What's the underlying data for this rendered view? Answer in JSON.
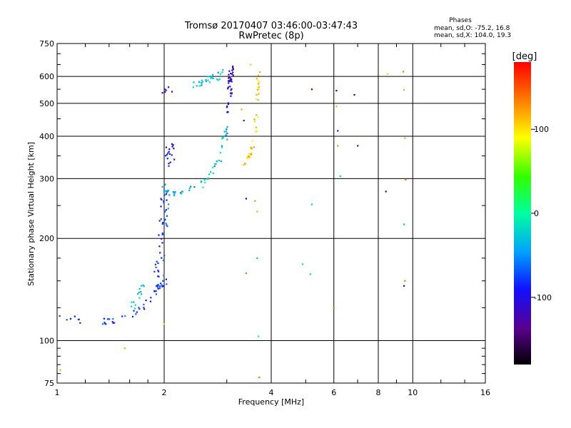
{
  "chart_data": {
    "type": "scatter",
    "title": "Tromsø 20170407 03:46:00-03:47:43",
    "subtitle": "RwPretec (8p)",
    "xlabel": "Frequency [MHz]",
    "ylabel": "Stationary phase Virtual Height [km]",
    "x_scale": "log",
    "y_scale": "log",
    "xlim": [
      1,
      16
    ],
    "ylim": [
      75,
      750
    ],
    "x_ticks": [
      1,
      2,
      4,
      6,
      8,
      10,
      16
    ],
    "x_tick_labels": [
      "1",
      "2",
      "4",
      "6",
      "8",
      "10",
      "16"
    ],
    "y_ticks": [
      75,
      100,
      200,
      300,
      400,
      500,
      600,
      750
    ],
    "y_tick_labels": [
      "75",
      "100",
      "200",
      "300",
      "400",
      "500",
      "600",
      "750"
    ],
    "grid": true,
    "info": {
      "title": "Phases",
      "line1": "mean, sd,O: -75.2, 16.8",
      "line2": "mean, sd,X: 104.0, 19.3"
    },
    "colorbar": {
      "label": "[deg]",
      "min": -180,
      "max": 180,
      "ticks": [
        100,
        0,
        -100
      ],
      "tick_labels": [
        "100",
        "0",
        "-100"
      ]
    },
    "traces": [
      {
        "x": [
          1.0,
          1.1,
          1.2,
          1.35,
          1.5,
          1.6,
          1.7,
          1.78,
          1.85,
          1.9,
          1.95,
          2.0
        ],
        "y": [
          118,
          116,
          113,
          114,
          115,
          118,
          122,
          128,
          134,
          140,
          145,
          150
        ],
        "phase": -75,
        "spread": 0.02,
        "n": 55
      },
      {
        "x": [
          1.62,
          1.66,
          1.7,
          1.75,
          1.8
        ],
        "y": [
          125,
          131,
          138,
          144,
          150
        ],
        "phase": -30,
        "spread": 0.02,
        "n": 14
      },
      {
        "x": [
          1.9,
          1.92,
          1.95,
          1.97,
          1.99,
          2.0
        ],
        "y": [
          150,
          170,
          195,
          220,
          250,
          280
        ],
        "phase": -85,
        "spread": 0.02,
        "n": 32
      },
      {
        "x": [
          2.0,
          2.02,
          2.05
        ],
        "y": [
          150,
          200,
          250
        ],
        "phase": -60,
        "spread": 0.02,
        "n": 12
      },
      {
        "x": [
          2.0,
          2.05,
          2.15,
          2.3,
          2.5,
          2.7,
          2.85,
          2.95,
          3.0
        ],
        "y": [
          285,
          272,
          270,
          275,
          288,
          310,
          340,
          380,
          430
        ],
        "phase": -45,
        "spread": 0.015,
        "n": 45
      },
      {
        "x": [
          2.5,
          2.65,
          2.8,
          2.9,
          2.95
        ],
        "y": [
          280,
          300,
          330,
          360,
          400
        ],
        "phase": -15,
        "spread": 0.015,
        "n": 15
      },
      {
        "x": [
          3.0,
          3.02,
          3.05,
          3.08,
          3.1,
          3.08,
          3.05
        ],
        "y": [
          430,
          480,
          530,
          580,
          640,
          600,
          560
        ],
        "phase": -110,
        "spread": 0.015,
        "n": 40
      },
      {
        "x": [
          2.4,
          2.55,
          2.7,
          2.85,
          2.95
        ],
        "y": [
          560,
          575,
          590,
          610,
          630
        ],
        "phase": -30,
        "spread": 0.025,
        "n": 30
      },
      {
        "x": [
          2.0,
          2.05,
          2.1
        ],
        "y": [
          540,
          545,
          550
        ],
        "phase": -110,
        "spread": 0.02,
        "n": 6
      },
      {
        "x": [
          2.02,
          2.05,
          2.08,
          2.1
        ],
        "y": [
          320,
          350,
          380,
          340
        ],
        "phase": -100,
        "spread": 0.02,
        "n": 18
      },
      {
        "x": [
          3.3,
          3.45,
          3.55,
          3.62,
          3.65,
          3.68
        ],
        "y": [
          330,
          340,
          370,
          430,
          520,
          620
        ],
        "phase": 105,
        "spread": 0.012,
        "n": 42
      }
    ],
    "points": [
      {
        "x": 1.55,
        "y": 95,
        "phase": 120
      },
      {
        "x": 1.02,
        "y": 82,
        "phase": 120
      },
      {
        "x": 2.0,
        "y": 112,
        "phase": 110
      },
      {
        "x": 3.7,
        "y": 78,
        "phase": 140
      },
      {
        "x": 3.68,
        "y": 103,
        "phase": 10
      },
      {
        "x": 3.65,
        "y": 175,
        "phase": -40
      },
      {
        "x": 3.4,
        "y": 158,
        "phase": 140
      },
      {
        "x": 3.4,
        "y": 262,
        "phase": -150
      },
      {
        "x": 3.6,
        "y": 258,
        "phase": 130
      },
      {
        "x": 3.65,
        "y": 240,
        "phase": 120
      },
      {
        "x": 3.3,
        "y": 480,
        "phase": 120
      },
      {
        "x": 3.35,
        "y": 445,
        "phase": -110
      },
      {
        "x": 3.5,
        "y": 650,
        "phase": 110
      },
      {
        "x": 4.9,
        "y": 168,
        "phase": -20
      },
      {
        "x": 5.15,
        "y": 157,
        "phase": -20
      },
      {
        "x": 5.2,
        "y": 252,
        "phase": -20
      },
      {
        "x": 5.2,
        "y": 550,
        "phase": -110
      },
      {
        "x": 6.0,
        "y": 125,
        "phase": 140
      },
      {
        "x": 6.1,
        "y": 545,
        "phase": -150
      },
      {
        "x": 6.1,
        "y": 490,
        "phase": 120
      },
      {
        "x": 6.15,
        "y": 415,
        "phase": -100
      },
      {
        "x": 6.15,
        "y": 375,
        "phase": 130
      },
      {
        "x": 6.25,
        "y": 305,
        "phase": -30
      },
      {
        "x": 6.85,
        "y": 530,
        "phase": -150
      },
      {
        "x": 7.0,
        "y": 375,
        "phase": -110
      },
      {
        "x": 8.4,
        "y": 275,
        "phase": -150
      },
      {
        "x": 8.5,
        "y": 610,
        "phase": 110
      },
      {
        "x": 9.4,
        "y": 620,
        "phase": 140
      },
      {
        "x": 9.45,
        "y": 548,
        "phase": 120
      },
      {
        "x": 9.5,
        "y": 395,
        "phase": 120
      },
      {
        "x": 9.55,
        "y": 298,
        "phase": 140
      },
      {
        "x": 9.45,
        "y": 220,
        "phase": -30
      },
      {
        "x": 9.5,
        "y": 150,
        "phase": 140
      },
      {
        "x": 9.45,
        "y": 145,
        "phase": -150
      }
    ]
  }
}
